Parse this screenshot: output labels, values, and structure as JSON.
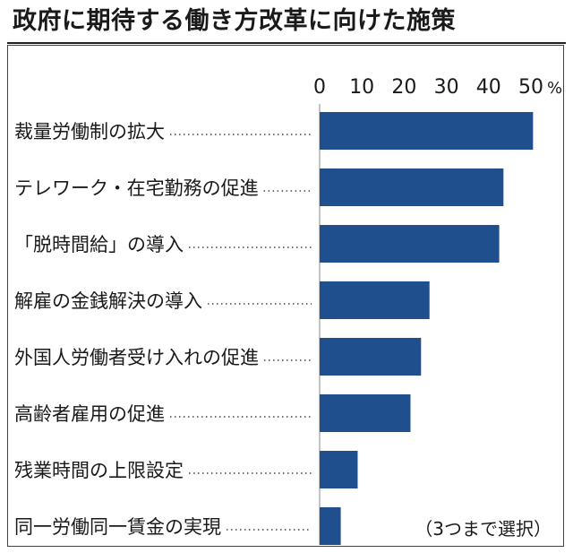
{
  "chart_data": {
    "type": "bar",
    "orientation": "horizontal",
    "title": "政府に期待する働き方改革に向けた施策",
    "categories": [
      "裁量労働制の拡大",
      "テレワーク・在宅勤務の促進",
      "「脱時間給」の導入",
      "解雇の金銭解決の導入",
      "外国人労働者受け入れの促進",
      "高齢者雇用の促進",
      "残業時間の上限設定",
      "同一労働同一賃金の実現"
    ],
    "values": [
      50.5,
      43.5,
      42.5,
      26,
      24,
      21.5,
      9,
      5
    ],
    "xlim": [
      0,
      50
    ],
    "xticks": [
      "0",
      "10",
      "20",
      "30",
      "40",
      "50"
    ],
    "unit": "%",
    "note": "（3つまで選択）",
    "colors": {
      "bar": "#1f4f8c"
    }
  }
}
